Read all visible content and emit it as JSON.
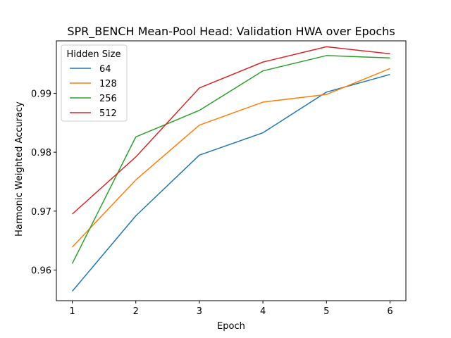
{
  "chart_data": {
    "type": "line",
    "title": "SPR_BENCH Mean-Pool Head: Validation HWA over Epochs",
    "xlabel": "Epoch",
    "ylabel": "Harmonic Weighted Accuracy",
    "x": [
      1,
      2,
      3,
      4,
      5,
      6
    ],
    "xlim": [
      0.75,
      6.25
    ],
    "ylim": [
      0.9548,
      0.9989
    ],
    "xticks": [
      1,
      2,
      3,
      4,
      5,
      6
    ],
    "yticks": [
      0.96,
      0.97,
      0.98,
      0.99
    ],
    "yticklabels": [
      "0.96",
      "0.97",
      "0.98",
      "0.99"
    ],
    "grid": false,
    "legend": {
      "title": "Hidden Size",
      "placement": "top-left"
    },
    "series": [
      {
        "name": "64",
        "color": "#1f77b4",
        "values": [
          0.9564,
          0.9692,
          0.9795,
          0.9833,
          0.9902,
          0.9932
        ]
      },
      {
        "name": "128",
        "color": "#ff7f0e",
        "values": [
          0.9639,
          0.9753,
          0.9846,
          0.9885,
          0.9898,
          0.9942
        ]
      },
      {
        "name": "256",
        "color": "#2ca02c",
        "values": [
          0.9611,
          0.9826,
          0.9871,
          0.9938,
          0.9964,
          0.996
        ]
      },
      {
        "name": "512",
        "color": "#d62728",
        "values": [
          0.9695,
          0.9792,
          0.9909,
          0.9953,
          0.9979,
          0.9967
        ]
      }
    ]
  }
}
